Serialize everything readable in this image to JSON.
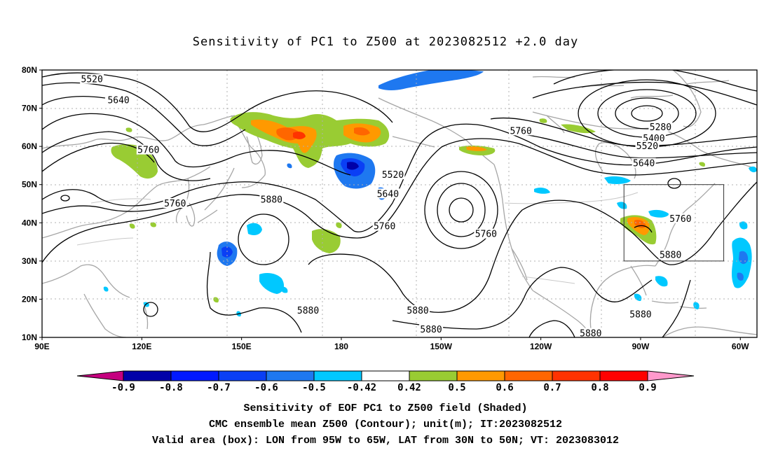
{
  "title": "Sensitivity of PC1 to Z500 at 2023082512 +2.0 day",
  "map": {
    "lon_range": [
      90,
      305
    ],
    "lat_range": [
      10,
      80
    ],
    "lat_labels": [
      "80N",
      "70N",
      "60N",
      "50N",
      "40N",
      "30N",
      "20N",
      "10N"
    ],
    "lon_labels": [
      "90E",
      "120E",
      "150E",
      "180",
      "150W",
      "120W",
      "90W",
      "60W"
    ],
    "valid_box": {
      "lon": [
        -95,
        -65
      ],
      "lat": [
        30,
        50
      ]
    }
  },
  "contours": {
    "labels": [
      {
        "text": "5520",
        "lon": 105,
        "lat": 77.5
      },
      {
        "text": "5640",
        "lon": 113,
        "lat": 72
      },
      {
        "text": "5760",
        "lon": 122,
        "lat": 59
      },
      {
        "text": "5760",
        "lon": 130,
        "lat": 45
      },
      {
        "text": "5880",
        "lon": 159,
        "lat": 46
      },
      {
        "text": "5520",
        "lon": -164.5,
        "lat": 52.5
      },
      {
        "text": "5640",
        "lon": -166,
        "lat": 47.5
      },
      {
        "text": "5760",
        "lon": -167,
        "lat": 39
      },
      {
        "text": "5760",
        "lon": -136.5,
        "lat": 37
      },
      {
        "text": "5760",
        "lon": -126,
        "lat": 64
      },
      {
        "text": "5280",
        "lon": -84,
        "lat": 65
      },
      {
        "text": "5400",
        "lon": -86,
        "lat": 62
      },
      {
        "text": "5520",
        "lon": -88,
        "lat": 60
      },
      {
        "text": "5640",
        "lon": -89,
        "lat": 55.5
      },
      {
        "text": "5760",
        "lon": -78,
        "lat": 41
      },
      {
        "text": "5880",
        "lon": -81,
        "lat": 31.5
      },
      {
        "text": "5880",
        "lon": 170,
        "lat": 17
      },
      {
        "text": "5880",
        "lon": -157,
        "lat": 17
      },
      {
        "text": "5880",
        "lon": -153,
        "lat": 12
      },
      {
        "text": "5880",
        "lon": -105,
        "lat": 11
      },
      {
        "text": "5880",
        "lon": -90,
        "lat": 16
      }
    ]
  },
  "colorbar": {
    "labels": [
      "-0.9",
      "-0.8",
      "-0.7",
      "-0.6",
      "-0.5",
      "-0.42",
      "0.42",
      "0.5",
      "0.6",
      "0.7",
      "0.8",
      "0.9"
    ],
    "colors": [
      "#c5007f",
      "#0000a8",
      "#0019ff",
      "#0a3ff5",
      "#1e78f0",
      "#00c8ff",
      "#ffffff",
      "#99cc33",
      "#ff9900",
      "#ff6600",
      "#ff3300",
      "#ff0000",
      "#ff99cc"
    ]
  },
  "captions": [
    "Sensitivity of EOF PC1 to Z500 field (Shaded)",
    "CMC ensemble mean Z500 (Contour); unit(m); IT:2023082512",
    "Valid area (box): LON from 95W to 65W, LAT from 30N to 50N; VT: 2023083012"
  ]
}
